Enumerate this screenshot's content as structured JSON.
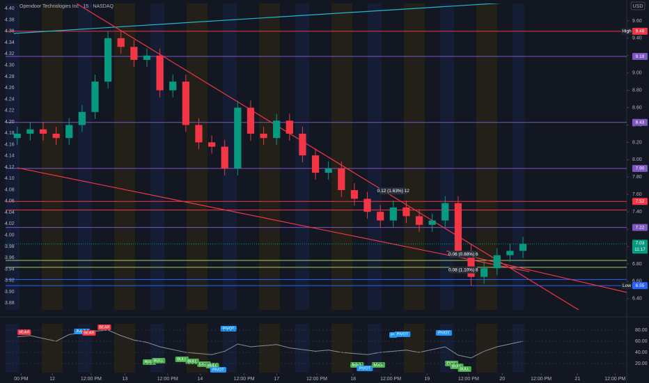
{
  "chart_data": {
    "type": "candlestick",
    "title": "Opendoor Technologies Inc · 15 · NASDAQ",
    "currency": "USD",
    "x": [
      0,
      1,
      2,
      3,
      4,
      5,
      6,
      7,
      8,
      9,
      10,
      11,
      12,
      13,
      14,
      15,
      16,
      17,
      18,
      19,
      20,
      21,
      22,
      23,
      24,
      25,
      26,
      27,
      28,
      29,
      30,
      31,
      32,
      33,
      34,
      35,
      36,
      37,
      38,
      39
    ],
    "xlim": [
      -0.9,
      47
    ],
    "xticks": [
      {
        "value": 0.3,
        "label": "00 PM"
      },
      {
        "value": 2.7,
        "label": "12"
      },
      {
        "value": 5.7,
        "label": "12:00 PM"
      },
      {
        "value": 8.3,
        "label": "13"
      },
      {
        "value": 11.6,
        "label": "12:00 PM"
      },
      {
        "value": 14.1,
        "label": "14"
      },
      {
        "value": 17.5,
        "label": "12:00 PM"
      },
      {
        "value": 20.0,
        "label": "17"
      },
      {
        "value": 23.1,
        "label": "12:00 PM"
      },
      {
        "value": 25.9,
        "label": "18"
      },
      {
        "value": 28.8,
        "label": "12:00 PM"
      },
      {
        "value": 31.6,
        "label": "19"
      },
      {
        "value": 34.8,
        "label": "12:00 PM"
      },
      {
        "value": 37.4,
        "label": "20"
      },
      {
        "value": 40.4,
        "label": "12:00 PM"
      },
      {
        "value": 43.2,
        "label": "21"
      },
      {
        "value": 46.1,
        "label": "12:00 PM"
      }
    ],
    "open": [
      8.25,
      8.3,
      8.35,
      8.3,
      8.25,
      8.4,
      8.55,
      8.9,
      9.4,
      9.3,
      9.15,
      9.2,
      8.8,
      8.9,
      8.4,
      8.2,
      8.15,
      7.9,
      8.6,
      8.3,
      8.25,
      8.45,
      8.3,
      8.05,
      7.85,
      7.9,
      7.65,
      7.55,
      7.4,
      7.3,
      7.45,
      7.35,
      7.25,
      7.3,
      7.5,
      6.95,
      6.65,
      6.75,
      6.9,
      6.95
    ],
    "high": [
      8.38,
      8.43,
      8.43,
      8.38,
      8.48,
      8.63,
      8.98,
      9.48,
      9.48,
      9.38,
      9.28,
      9.28,
      8.98,
      8.98,
      8.48,
      8.28,
      8.23,
      8.68,
      8.68,
      8.38,
      8.53,
      8.53,
      8.38,
      8.13,
      7.98,
      7.98,
      7.73,
      7.63,
      7.48,
      7.53,
      7.53,
      7.43,
      7.38,
      7.58,
      7.58,
      7.03,
      6.83,
      6.98,
      7.03,
      7.11
    ],
    "low": [
      8.17,
      8.22,
      8.22,
      8.17,
      8.17,
      8.32,
      8.47,
      8.82,
      9.22,
      9.07,
      9.07,
      8.72,
      8.72,
      8.32,
      8.12,
      8.07,
      7.82,
      7.82,
      8.22,
      8.17,
      8.17,
      8.22,
      7.97,
      7.77,
      7.77,
      7.57,
      7.47,
      7.32,
      7.22,
      7.22,
      7.27,
      7.17,
      7.17,
      7.22,
      6.87,
      6.55,
      6.57,
      6.67,
      6.82,
      6.87
    ],
    "close": [
      8.3,
      8.35,
      8.3,
      8.25,
      8.4,
      8.55,
      8.9,
      9.4,
      9.3,
      9.15,
      9.2,
      8.8,
      8.9,
      8.4,
      8.2,
      8.15,
      7.9,
      8.6,
      8.3,
      8.25,
      8.45,
      8.3,
      8.05,
      7.85,
      7.9,
      7.65,
      7.55,
      7.4,
      7.3,
      7.45,
      7.35,
      7.25,
      7.3,
      7.5,
      6.95,
      6.65,
      6.75,
      6.9,
      6.95,
      7.03
    ],
    "up_color": "#089981",
    "down_color": "#f23645",
    "ylim": [
      6.27,
      9.8
    ],
    "yticks": [
      {
        "value": 9.6,
        "label": "9.60"
      },
      {
        "value": 9.4,
        "label": "9.40"
      },
      {
        "value": 9.2,
        "label": "9.20"
      },
      {
        "value": 9.0,
        "label": "9.00"
      },
      {
        "value": 8.8,
        "label": "8.80"
      },
      {
        "value": 8.6,
        "label": "8.60"
      },
      {
        "value": 8.4,
        "label": "8.40"
      },
      {
        "value": 8.2,
        "label": "8.20"
      },
      {
        "value": 8.0,
        "label": "8.00"
      },
      {
        "value": 7.8,
        "label": "7.80"
      },
      {
        "value": 7.6,
        "label": "7.60"
      },
      {
        "value": 7.4,
        "label": "7.40"
      },
      {
        "value": 7.2,
        "label": "7.20"
      },
      {
        "value": 7.0,
        "label": "7.00"
      },
      {
        "value": 6.8,
        "label": "6.80"
      },
      {
        "value": 6.6,
        "label": "6.60"
      },
      {
        "value": 6.4,
        "label": "6.40"
      }
    ],
    "y2lim": [
      3.868,
      4.409
    ],
    "y2ticks": [
      {
        "value": 4.4,
        "label": "4.40"
      },
      4.38,
      4.36,
      4.34,
      4.32,
      {
        "value": 4.3,
        "label": "4.30"
      },
      4.28,
      4.26,
      4.24,
      4.22,
      {
        "value": 4.2,
        "label": "4.20"
      },
      4.18,
      4.16,
      4.14,
      4.12,
      {
        "value": 4.1,
        "label": "4.10"
      },
      4.08,
      4.06,
      4.04,
      4.02,
      {
        "value": 4.0,
        "label": "4.00"
      },
      3.98,
      3.96,
      3.94,
      3.92,
      {
        "value": 3.9,
        "label": "3.90"
      },
      3.88
    ],
    "levels": [
      {
        "value": 9.48,
        "color": "#f23645",
        "tag": "High",
        "show_value": true
      },
      {
        "value": 9.19,
        "color": "#7e57c2",
        "show_value": true
      },
      {
        "value": 8.43,
        "color": "#7e57c2",
        "show_value": true
      },
      {
        "value": 7.9,
        "value_label": "7.90",
        "color": "#7e57c2",
        "show_value": true
      },
      {
        "value": 7.52,
        "color": "#f23645",
        "show_value": true
      },
      {
        "value": 7.42,
        "color": "#f23645",
        "show_value": false
      },
      {
        "value": 7.22,
        "color": "#7e57c2",
        "show_value": true
      },
      {
        "value": 6.84,
        "color": "#9ccc65",
        "show_value": false
      },
      {
        "value": 6.76,
        "color": "#9ccc65",
        "show_value": false
      },
      {
        "value": 6.62,
        "color": "#2962ff",
        "show_value": false
      },
      {
        "value": 6.55,
        "color": "#2962ff",
        "tag": "Low",
        "show_value": true
      }
    ],
    "trendlines": [
      {
        "x": [
          -0.27,
          41.1
        ],
        "y": [
          9.455,
          9.84
        ],
        "color": "#22b8cf"
      },
      {
        "x": [
          4.57,
          43.3
        ],
        "y": [
          9.8,
          6.27
        ],
        "color": "#f23645"
      },
      {
        "x": [
          0,
          39.5
        ],
        "y": [
          7.907,
          6.71
        ],
        "color": "#f23645"
      },
      {
        "x": [
          33.1,
          48.8
        ],
        "y": [
          6.95,
          6.41
        ],
        "color": "#f23645"
      }
    ],
    "last_price": {
      "value": 7.03,
      "countdown": "11:17",
      "color": "#089981"
    },
    "annotations": [
      {
        "text": "0.12 (1.63%) 12",
        "x": 29.0,
        "y": 7.64
      },
      {
        "text": "0.06 (0.88%) 6",
        "x": 34.4,
        "y": 6.91
      },
      {
        "text": "0.08 (1.10%) 8",
        "x": 34.4,
        "y": 6.73
      }
    ],
    "indicator": {
      "type": "line",
      "values": [
        68,
        70,
        65,
        60,
        72,
        75,
        78,
        80,
        70,
        62,
        58,
        50,
        45,
        40,
        38,
        36,
        42,
        55,
        50,
        52,
        54,
        48,
        45,
        42,
        44,
        40,
        38,
        36,
        40,
        42,
        44,
        40,
        45,
        50,
        35,
        30,
        42,
        50,
        55,
        60
      ],
      "color": "#8a8f9c",
      "ylim": [
        3.75,
        91.25
      ],
      "yticks": [
        {
          "value": 80,
          "label": "80.00"
        },
        {
          "value": 60,
          "label": "60.00"
        },
        {
          "value": 40,
          "label": "40.00"
        },
        {
          "value": 20,
          "label": "20.00"
        }
      ],
      "markers": [
        {
          "text": "BEAR",
          "x": 0.54,
          "y": 76.25,
          "color": "#f23645"
        },
        {
          "text": "PIVOT",
          "x": 5.0,
          "y": 77.5,
          "color": "#2196f3"
        },
        {
          "text": "BEAR",
          "x": 5.54,
          "y": 75,
          "color": "#f23645"
        },
        {
          "text": "BEAR",
          "x": 6.72,
          "y": 85,
          "color": "#f23645"
        },
        {
          "text": "BULL",
          "x": 10.2,
          "y": 22.5,
          "color": "#4caf50"
        },
        {
          "text": "BULL",
          "x": 10.9,
          "y": 25,
          "color": "#4caf50"
        },
        {
          "text": "BULL",
          "x": 12.7,
          "y": 27.5,
          "color": "#4caf50"
        },
        {
          "text": "BULL",
          "x": 13.5,
          "y": 23.75,
          "color": "#4caf50"
        },
        {
          "text": "BULL",
          "x": 14.4,
          "y": 18.75,
          "color": "#4caf50"
        },
        {
          "text": "BULL",
          "x": 15.05,
          "y": 16.25,
          "color": "#4caf50"
        },
        {
          "text": "PIVOT",
          "x": 15.5,
          "y": 8.75,
          "color": "#2196f3"
        },
        {
          "text": "PIVOT",
          "x": 16.3,
          "y": 82.5,
          "color": "#2196f3"
        },
        {
          "text": "BULL",
          "x": 26.2,
          "y": 17.5,
          "color": "#4caf50"
        },
        {
          "text": "PIVOT",
          "x": 26.8,
          "y": 11.25,
          "color": "#2196f3"
        },
        {
          "text": "BULL",
          "x": 27.85,
          "y": 17.5,
          "color": "#4caf50"
        },
        {
          "text": "PV",
          "x": 29.0,
          "y": 71.25,
          "color": "#2196f3"
        },
        {
          "text": "PIVOT",
          "x": 29.7,
          "y": 72.5,
          "color": "#2196f3"
        },
        {
          "text": "PIVOT",
          "x": 32.9,
          "y": 75,
          "color": "#2196f3"
        },
        {
          "text": "BULL",
          "x": 33.5,
          "y": 20,
          "color": "#4caf50"
        },
        {
          "text": "BULL",
          "x": 33.9,
          "y": 15,
          "color": "#4caf50"
        },
        {
          "text": "BULL",
          "x": 34.5,
          "y": 10,
          "color": "#4caf50"
        }
      ]
    }
  }
}
